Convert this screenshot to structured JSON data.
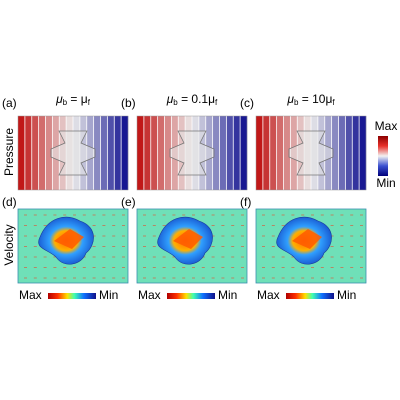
{
  "pressure_row": {
    "label": "Pressure",
    "panels": [
      {
        "label": "(a)",
        "title": [
          {
            "text": "μ"
          },
          {
            "sub": "b"
          },
          {
            "text": " = μ"
          },
          {
            "sub": "f"
          }
        ]
      },
      {
        "label": "(b)",
        "title": [
          {
            "text": "μ"
          },
          {
            "sub": "b"
          },
          {
            "text": " = 0.1μ"
          },
          {
            "sub": "f"
          }
        ]
      },
      {
        "label": "(c)",
        "title": [
          {
            "text": "μ"
          },
          {
            "sub": "b"
          },
          {
            "text": " = 10μ"
          },
          {
            "sub": "f"
          }
        ]
      }
    ],
    "colorbar": {
      "max": "Max",
      "min": "Min"
    }
  },
  "velocity_row": {
    "label": "Velocity",
    "panels": [
      {
        "label": "(d)",
        "colorbar": {
          "max": "Max",
          "min": "Min"
        }
      },
      {
        "label": "(e)",
        "colorbar": {
          "max": "Max",
          "min": "Min"
        }
      },
      {
        "label": "(f)",
        "colorbar": {
          "max": "Max",
          "min": "Min"
        }
      }
    ]
  }
}
